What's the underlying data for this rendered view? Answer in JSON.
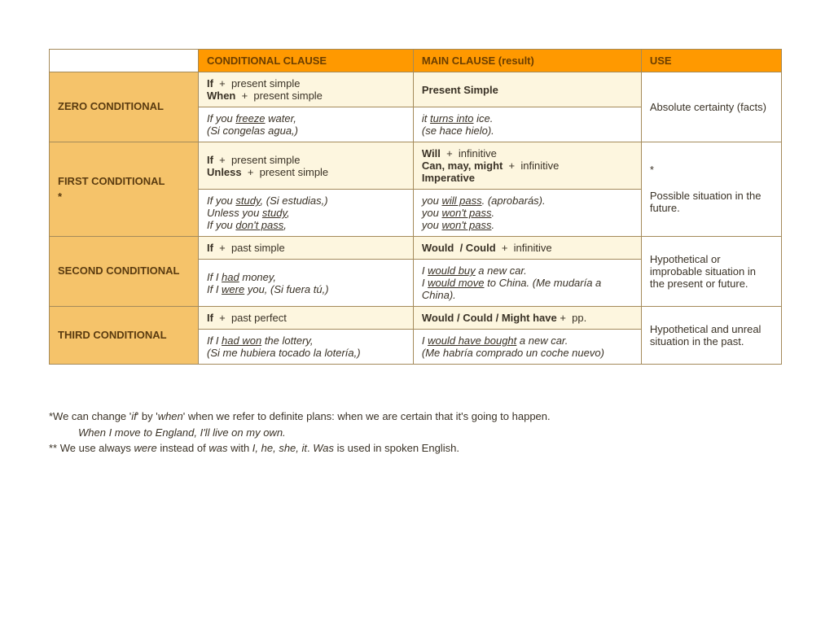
{
  "colors": {
    "header_bg": "#ff9900",
    "header_text": "#6b3e00",
    "label_bg": "#f5c36a",
    "formula_bg": "#fdf6df",
    "border": "#a48a5a",
    "body_text": "#3a3226",
    "page_bg": "#ffffff"
  },
  "typography": {
    "font_family": "Century Gothic",
    "body_size_pt": 13,
    "header_weight": "bold"
  },
  "headers": {
    "conditional_clause": "CONDITIONAL CLAUSE",
    "main_clause": "MAIN CLAUSE (result)",
    "use": "USE"
  },
  "rows": {
    "zero": {
      "label": "ZERO CONDITIONAL",
      "formula_clause_html": "<span class='b'>If</span><span class='plus'>+</span>present simple<br><span class='b'>When</span><span class='plus'>+</span>present simple",
      "formula_main_html": "<span class='b'>Present Simple</span>",
      "example_clause_html": "If you <span class='u'>freeze</span> water,<br>(Si congelas agua,)",
      "example_main_html": "it <span class='u'>turns into</span> ice.<br>(se hace hielo).",
      "use": "Absolute certainty (facts)"
    },
    "first": {
      "label_html": "FIRST CONDITIONAL<br>*",
      "formula_clause_html": "<span class='b'>If</span><span class='plus'>+</span>present simple<br><span class='b'>Unless</span><span class='plus'>+</span>present simple",
      "formula_main_html": "<span class='b'>Will</span><span class='plus'>+</span>infinitive<br><span class='b'>Can, may, might</span><span class='plus'>+</span>infinitive<br><span class='b'>Imperative</span>",
      "example_clause_html": "If you <span class='u'>study</span>, (Si estudias,)<br>Unless you <span class='u'>study</span>,<br>If you <span class='u'>don't pass</span>,",
      "example_main_html": "you <span class='u'>will pass</span>. (aprobarás).<br>you <span class='u'>won't pass</span>.<br>you <span class='u'>won't pass</span>.",
      "use_html": "<span class='ast-fix'>*</span><br><br>Possible situation in the future."
    },
    "second": {
      "label": "SECOND CONDITIONAL",
      "formula_clause_html": "<span class='b'>If</span><span class='plus'>+</span>past simple",
      "formula_main_html": "<span class='b'>Would&nbsp; / Could</span><span class='plus'>+</span>infinitive",
      "example_clause_html": "If I <span class='u'>had</span> money,<br>If I <span class='u'>were</span> you, (Si fuera tú,)",
      "example_main_html": "I <span class='u'>would buy</span> a new car.<br>I <span class='u'>would move</span> to China. (Me mudaría a China).",
      "use": "Hypothetical or improbable situation in the present or future."
    },
    "third": {
      "label": "THIRD CONDITIONAL",
      "formula_clause_html": "<span class='b'>If</span><span class='plus'>+</span>past perfect",
      "formula_main_html": "<span class='b'>Would / Could / Might have</span>&nbsp;+&nbsp;&nbsp;pp.",
      "example_clause_html": "If I <span class='u'>had won</span> the lottery,<br>(Si me hubiera tocado la lotería,)",
      "example_main_html": "I <span class='u'>would have bought</span> a new car.<br>(Me habría comprado un coche nuevo)",
      "use": "Hypothetical and unreal situation in the past."
    }
  },
  "notes": {
    "n1_html": "*We can change '<i>if</i>' by '<i>when</i>' when we refer to definite plans: when we are certain that it's going to happen.",
    "n1_ex": "When I move to England, I'll live on my own.",
    "n2_html": "** We use always <i>were</i> instead of <i>was</i> with <i>I, he, she, it</i>. <i>Was</i> is used in spoken English."
  }
}
